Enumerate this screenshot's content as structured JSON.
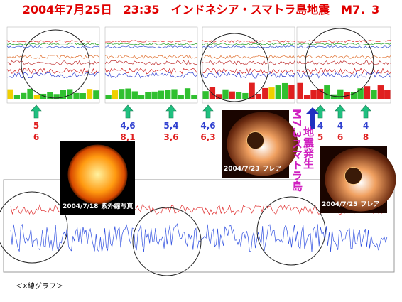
{
  "title": "2004年7月25日　23:35　インドネシア・スマトラ島地震　M7．3",
  "markers": [
    {
      "top": "5",
      "bottom": "6"
    },
    {
      "top": "4,6",
      "bottom": "8,1"
    },
    {
      "top": "5,4",
      "bottom": "3,6"
    },
    {
      "top": "4,6",
      "bottom": "6,3"
    },
    {
      "top": "4",
      "bottom": "5"
    },
    {
      "top": "4",
      "bottom": "6"
    },
    {
      "top": "4",
      "bottom": "8"
    }
  ],
  "quake": {
    "label": "M7.3スマトラ島",
    "event": "地震発生"
  },
  "photos": [
    {
      "date": "2004/7/18",
      "caption": "紫外線写真"
    },
    {
      "date": "2004/7/23",
      "caption": "フレア"
    },
    {
      "date": "2004/7/25",
      "caption": "フレア"
    }
  ],
  "caption": "＜X線グラフ＞"
}
